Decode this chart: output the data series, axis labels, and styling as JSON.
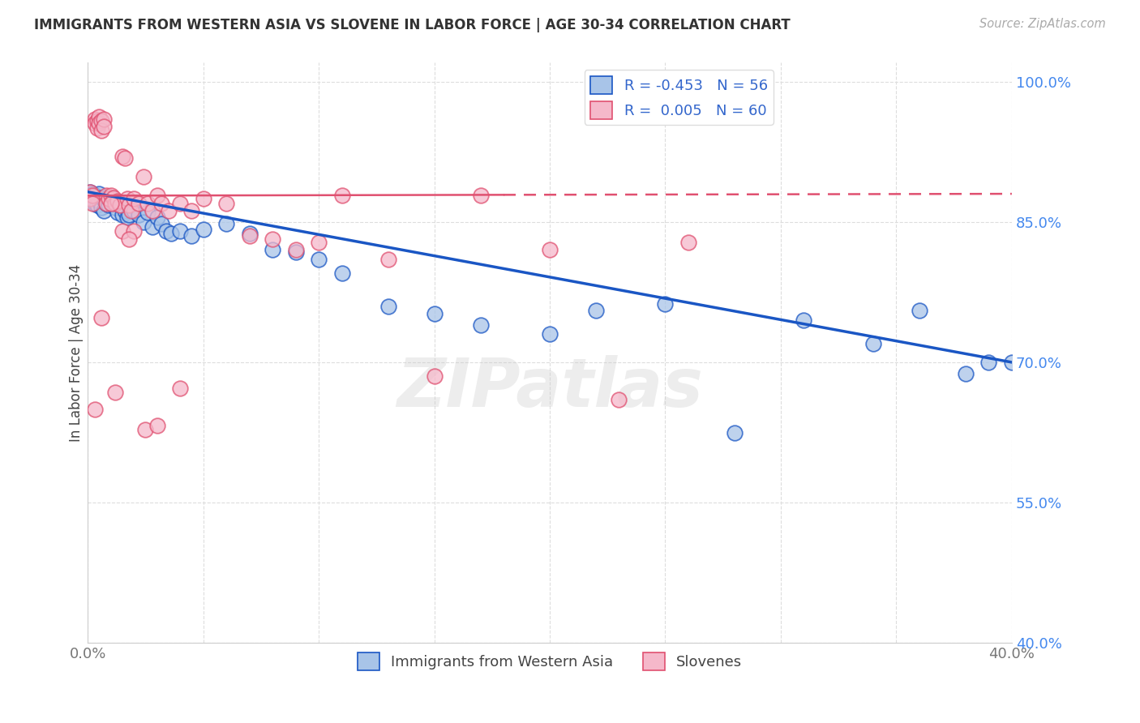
{
  "title": "IMMIGRANTS FROM WESTERN ASIA VS SLOVENE IN LABOR FORCE | AGE 30-34 CORRELATION CHART",
  "source": "Source: ZipAtlas.com",
  "ylabel": "In Labor Force | Age 30-34",
  "x_min": 0.0,
  "x_max": 0.4,
  "y_min": 0.4,
  "y_max": 1.02,
  "x_ticks": [
    0.0,
    0.05,
    0.1,
    0.15,
    0.2,
    0.25,
    0.3,
    0.35,
    0.4
  ],
  "y_ticks_right": [
    1.0,
    0.85,
    0.7,
    0.55,
    0.4
  ],
  "y_tick_labels_right": [
    "100.0%",
    "85.0%",
    "70.0%",
    "55.0%",
    "40.0%"
  ],
  "legend_blue_r": "R = -0.453",
  "legend_blue_n": "N = 56",
  "legend_pink_r": "R =  0.005",
  "legend_pink_n": "N = 60",
  "blue_color": "#a8c4e8",
  "pink_color": "#f5b8ca",
  "blue_line_color": "#1a56c4",
  "pink_line_color": "#e05070",
  "watermark": "ZIPatlas",
  "blue_x": [
    0.001,
    0.001,
    0.002,
    0.002,
    0.003,
    0.003,
    0.004,
    0.004,
    0.005,
    0.005,
    0.006,
    0.006,
    0.007,
    0.007,
    0.008,
    0.009,
    0.01,
    0.011,
    0.012,
    0.013,
    0.014,
    0.015,
    0.016,
    0.017,
    0.018,
    0.02,
    0.022,
    0.024,
    0.026,
    0.028,
    0.03,
    0.032,
    0.034,
    0.036,
    0.04,
    0.045,
    0.05,
    0.06,
    0.07,
    0.08,
    0.09,
    0.1,
    0.11,
    0.13,
    0.15,
    0.17,
    0.2,
    0.22,
    0.25,
    0.28,
    0.31,
    0.34,
    0.36,
    0.38,
    0.39,
    0.4
  ],
  "blue_y": [
    0.882,
    0.878,
    0.88,
    0.875,
    0.878,
    0.87,
    0.876,
    0.868,
    0.88,
    0.872,
    0.876,
    0.865,
    0.874,
    0.862,
    0.87,
    0.868,
    0.876,
    0.87,
    0.865,
    0.86,
    0.868,
    0.858,
    0.862,
    0.855,
    0.858,
    0.862,
    0.858,
    0.85,
    0.86,
    0.845,
    0.855,
    0.848,
    0.84,
    0.838,
    0.84,
    0.835,
    0.842,
    0.848,
    0.838,
    0.82,
    0.818,
    0.81,
    0.795,
    0.76,
    0.752,
    0.74,
    0.73,
    0.755,
    0.762,
    0.625,
    0.745,
    0.72,
    0.755,
    0.688,
    0.7,
    0.7
  ],
  "pink_x": [
    0.001,
    0.001,
    0.002,
    0.002,
    0.003,
    0.003,
    0.004,
    0.004,
    0.005,
    0.005,
    0.006,
    0.006,
    0.007,
    0.007,
    0.008,
    0.008,
    0.009,
    0.01,
    0.011,
    0.012,
    0.013,
    0.014,
    0.015,
    0.016,
    0.017,
    0.018,
    0.019,
    0.02,
    0.022,
    0.024,
    0.026,
    0.028,
    0.03,
    0.032,
    0.035,
    0.04,
    0.045,
    0.05,
    0.06,
    0.07,
    0.08,
    0.09,
    0.1,
    0.11,
    0.13,
    0.15,
    0.17,
    0.2,
    0.23,
    0.26,
    0.003,
    0.006,
    0.01,
    0.015,
    0.02,
    0.025,
    0.012,
    0.018,
    0.03,
    0.04
  ],
  "pink_y": [
    0.882,
    0.875,
    0.878,
    0.87,
    0.96,
    0.955,
    0.958,
    0.95,
    0.962,
    0.955,
    0.958,
    0.948,
    0.96,
    0.952,
    0.878,
    0.87,
    0.875,
    0.878,
    0.876,
    0.87,
    0.872,
    0.868,
    0.92,
    0.918,
    0.875,
    0.868,
    0.862,
    0.875,
    0.87,
    0.898,
    0.87,
    0.862,
    0.878,
    0.87,
    0.862,
    0.87,
    0.862,
    0.875,
    0.87,
    0.835,
    0.832,
    0.82,
    0.828,
    0.878,
    0.81,
    0.685,
    0.878,
    0.82,
    0.66,
    0.828,
    0.65,
    0.748,
    0.87,
    0.84,
    0.84,
    0.628,
    0.668,
    0.832,
    0.632,
    0.672
  ],
  "blue_trend_x0": 0.0,
  "blue_trend_y0": 0.882,
  "blue_trend_x1": 0.4,
  "blue_trend_y1": 0.7,
  "pink_trend_x0": 0.0,
  "pink_trend_y0": 0.878,
  "pink_trend_x1": 0.4,
  "pink_trend_y1": 0.88
}
